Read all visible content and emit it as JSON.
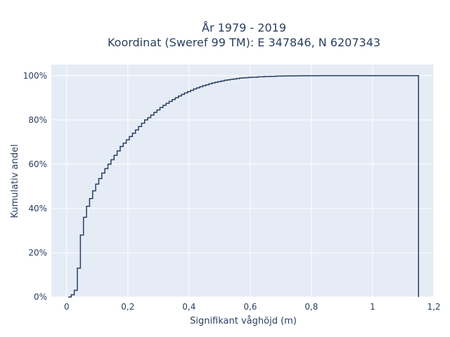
{
  "chart_data": {
    "type": "line",
    "title_line1": "År 1979 - 2019",
    "title_line2": "Koordinat (Sweref 99 TM): E 347846, N 6207343",
    "xlabel": "Signifikant våghöjd (m)",
    "ylabel": "Kumulativ andel",
    "xlim": [
      -0.05,
      1.2
    ],
    "ylim": [
      0,
      1.05
    ],
    "x_ticks": [
      0,
      0.2,
      0.4,
      0.6,
      0.8,
      1,
      1.2
    ],
    "x_tick_labels": [
      "0",
      "0,2",
      "0,4",
      "0,6",
      "0,8",
      "1",
      "1,2"
    ],
    "y_ticks": [
      0,
      0.2,
      0.4,
      0.6,
      0.8,
      1
    ],
    "y_tick_labels": [
      "0%",
      "20%",
      "40%",
      "60%",
      "80%",
      "100%"
    ],
    "line_color": "#2a3f5f",
    "plot_bg": "#e5ecf6",
    "grid": true,
    "series": [
      {
        "step": "hv",
        "x": [
          0.005,
          0.015,
          0.025,
          0.035,
          0.045,
          0.055,
          0.065,
          0.075,
          0.085,
          0.095,
          0.105,
          0.115,
          0.125,
          0.135,
          0.145,
          0.155,
          0.165,
          0.175,
          0.185,
          0.195,
          0.205,
          0.215,
          0.225,
          0.235,
          0.245,
          0.255,
          0.265,
          0.275,
          0.285,
          0.295,
          0.305,
          0.315,
          0.325,
          0.335,
          0.345,
          0.355,
          0.365,
          0.375,
          0.385,
          0.395,
          0.405,
          0.415,
          0.425,
          0.435,
          0.445,
          0.455,
          0.465,
          0.475,
          0.485,
          0.495,
          0.505,
          0.515,
          0.525,
          0.535,
          0.545,
          0.555,
          0.565,
          0.575,
          0.585,
          0.595,
          0.605,
          0.625,
          0.645,
          0.665,
          0.685,
          0.705,
          0.725,
          0.745,
          0.765,
          0.785,
          0.805,
          0.825,
          0.845,
          0.865,
          0.885,
          0.905,
          1.15,
          1.15
        ],
        "y": [
          0.0,
          0.01,
          0.03,
          0.13,
          0.28,
          0.36,
          0.41,
          0.445,
          0.48,
          0.51,
          0.535,
          0.56,
          0.58,
          0.6,
          0.62,
          0.64,
          0.66,
          0.68,
          0.695,
          0.71,
          0.725,
          0.74,
          0.755,
          0.77,
          0.785,
          0.8,
          0.81,
          0.822,
          0.834,
          0.845,
          0.856,
          0.866,
          0.875,
          0.884,
          0.892,
          0.9,
          0.908,
          0.915,
          0.922,
          0.928,
          0.934,
          0.94,
          0.945,
          0.95,
          0.955,
          0.959,
          0.963,
          0.967,
          0.97,
          0.973,
          0.976,
          0.979,
          0.981,
          0.983,
          0.985,
          0.987,
          0.989,
          0.99,
          0.991,
          0.992,
          0.993,
          0.995,
          0.996,
          0.997,
          0.998,
          0.9985,
          0.999,
          0.9993,
          0.9995,
          0.9997,
          0.9998,
          0.9999,
          1.0,
          1.0,
          1.0,
          1.0,
          1.0,
          0.0
        ]
      }
    ]
  }
}
